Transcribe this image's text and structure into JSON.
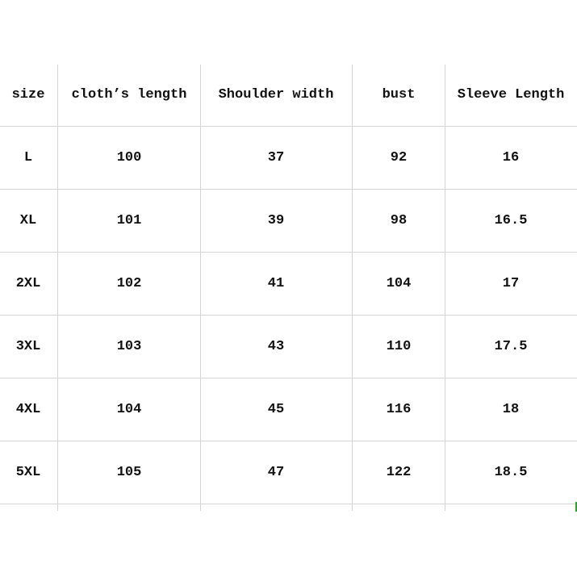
{
  "table": {
    "headers": [
      "size",
      "cloth’s length",
      "Shoulder width",
      "bust",
      "Sleeve Length"
    ],
    "rows": [
      [
        "L",
        "100",
        "37",
        "92",
        "16"
      ],
      [
        "XL",
        "101",
        "39",
        "98",
        "16.5"
      ],
      [
        "2XL",
        "102",
        "41",
        "104",
        "17"
      ],
      [
        "3XL",
        "103",
        "43",
        "110",
        "17.5"
      ],
      [
        "4XL",
        "104",
        "45",
        "116",
        "18"
      ],
      [
        "5XL",
        "105",
        "47",
        "122",
        "18.5"
      ]
    ]
  },
  "colors": {
    "grid": "#d4d4d4",
    "text": "#111111",
    "selection_marker": "#2aa52a"
  }
}
